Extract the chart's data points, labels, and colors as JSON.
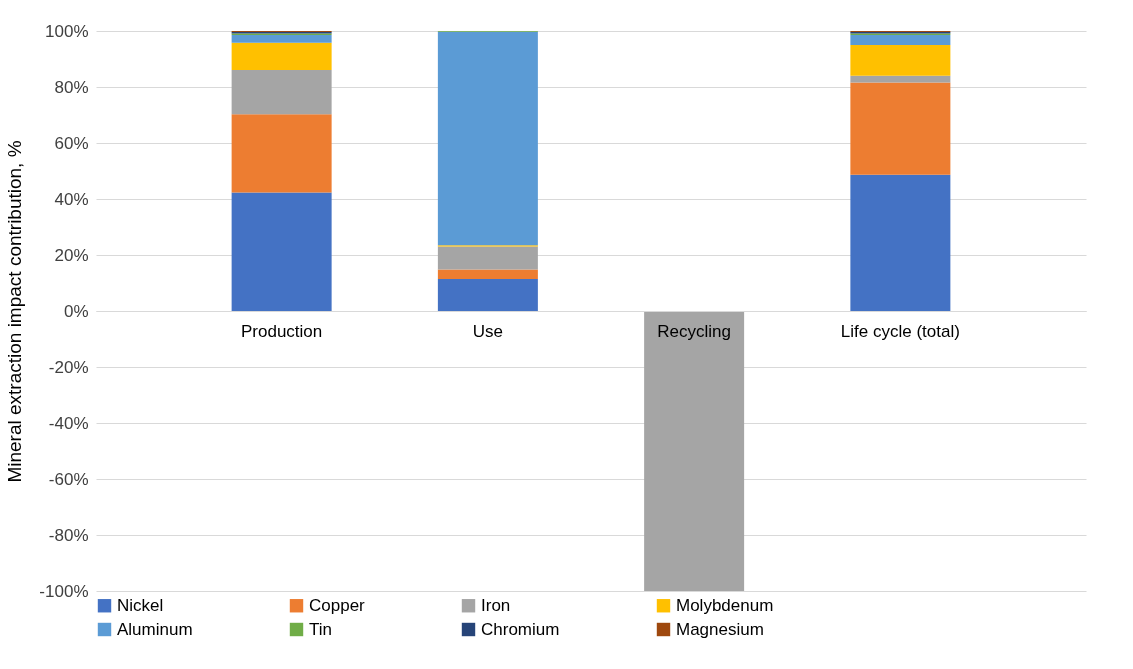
{
  "chart_data": {
    "type": "bar",
    "stacked": true,
    "ylabel": "Mineral extraction impact contribution, %",
    "categories": [
      "Production",
      "Use",
      "Recycling",
      "Life cycle (total)"
    ],
    "series": [
      {
        "name": "Nickel",
        "color": "#4472c4",
        "values": [
          42.3,
          11.4,
          0,
          48.7
        ]
      },
      {
        "name": "Copper",
        "color": "#ed7d31",
        "values": [
          28.0,
          3.4,
          0,
          32.9
        ]
      },
      {
        "name": "Iron",
        "color": "#a5a5a5",
        "values": [
          15.8,
          8.2,
          -100,
          2.4
        ]
      },
      {
        "name": "Molybdenum",
        "color": "#ffc000",
        "values": [
          9.7,
          0.5,
          0,
          11.0
        ]
      },
      {
        "name": "Aluminum",
        "color": "#5b9bd5",
        "values": [
          2.8,
          76.2,
          0,
          3.6
        ]
      },
      {
        "name": "Tin",
        "color": "#70ad47",
        "values": [
          0.5,
          0.3,
          0,
          0.5
        ]
      },
      {
        "name": "Chromium",
        "color": "#264478",
        "values": [
          0.5,
          0,
          0,
          0.5
        ]
      },
      {
        "name": "Magnesium",
        "color": "#9e480e",
        "values": [
          0.4,
          0,
          0,
          0.4
        ]
      }
    ],
    "ylim": [
      -100,
      100
    ],
    "yticks": [
      {
        "value": -100,
        "label": "-100%"
      },
      {
        "value": -80,
        "label": "-80%"
      },
      {
        "value": -60,
        "label": "-60%"
      },
      {
        "value": -40,
        "label": "-40%"
      },
      {
        "value": -20,
        "label": "-20%"
      },
      {
        "value": 0,
        "label": "0%"
      },
      {
        "value": 20,
        "label": "20%"
      },
      {
        "value": 40,
        "label": "40%"
      },
      {
        "value": 60,
        "label": "60%"
      },
      {
        "value": 80,
        "label": "80%"
      },
      {
        "value": 100,
        "label": "100%"
      }
    ],
    "grid": "y",
    "legend": "bottom"
  }
}
